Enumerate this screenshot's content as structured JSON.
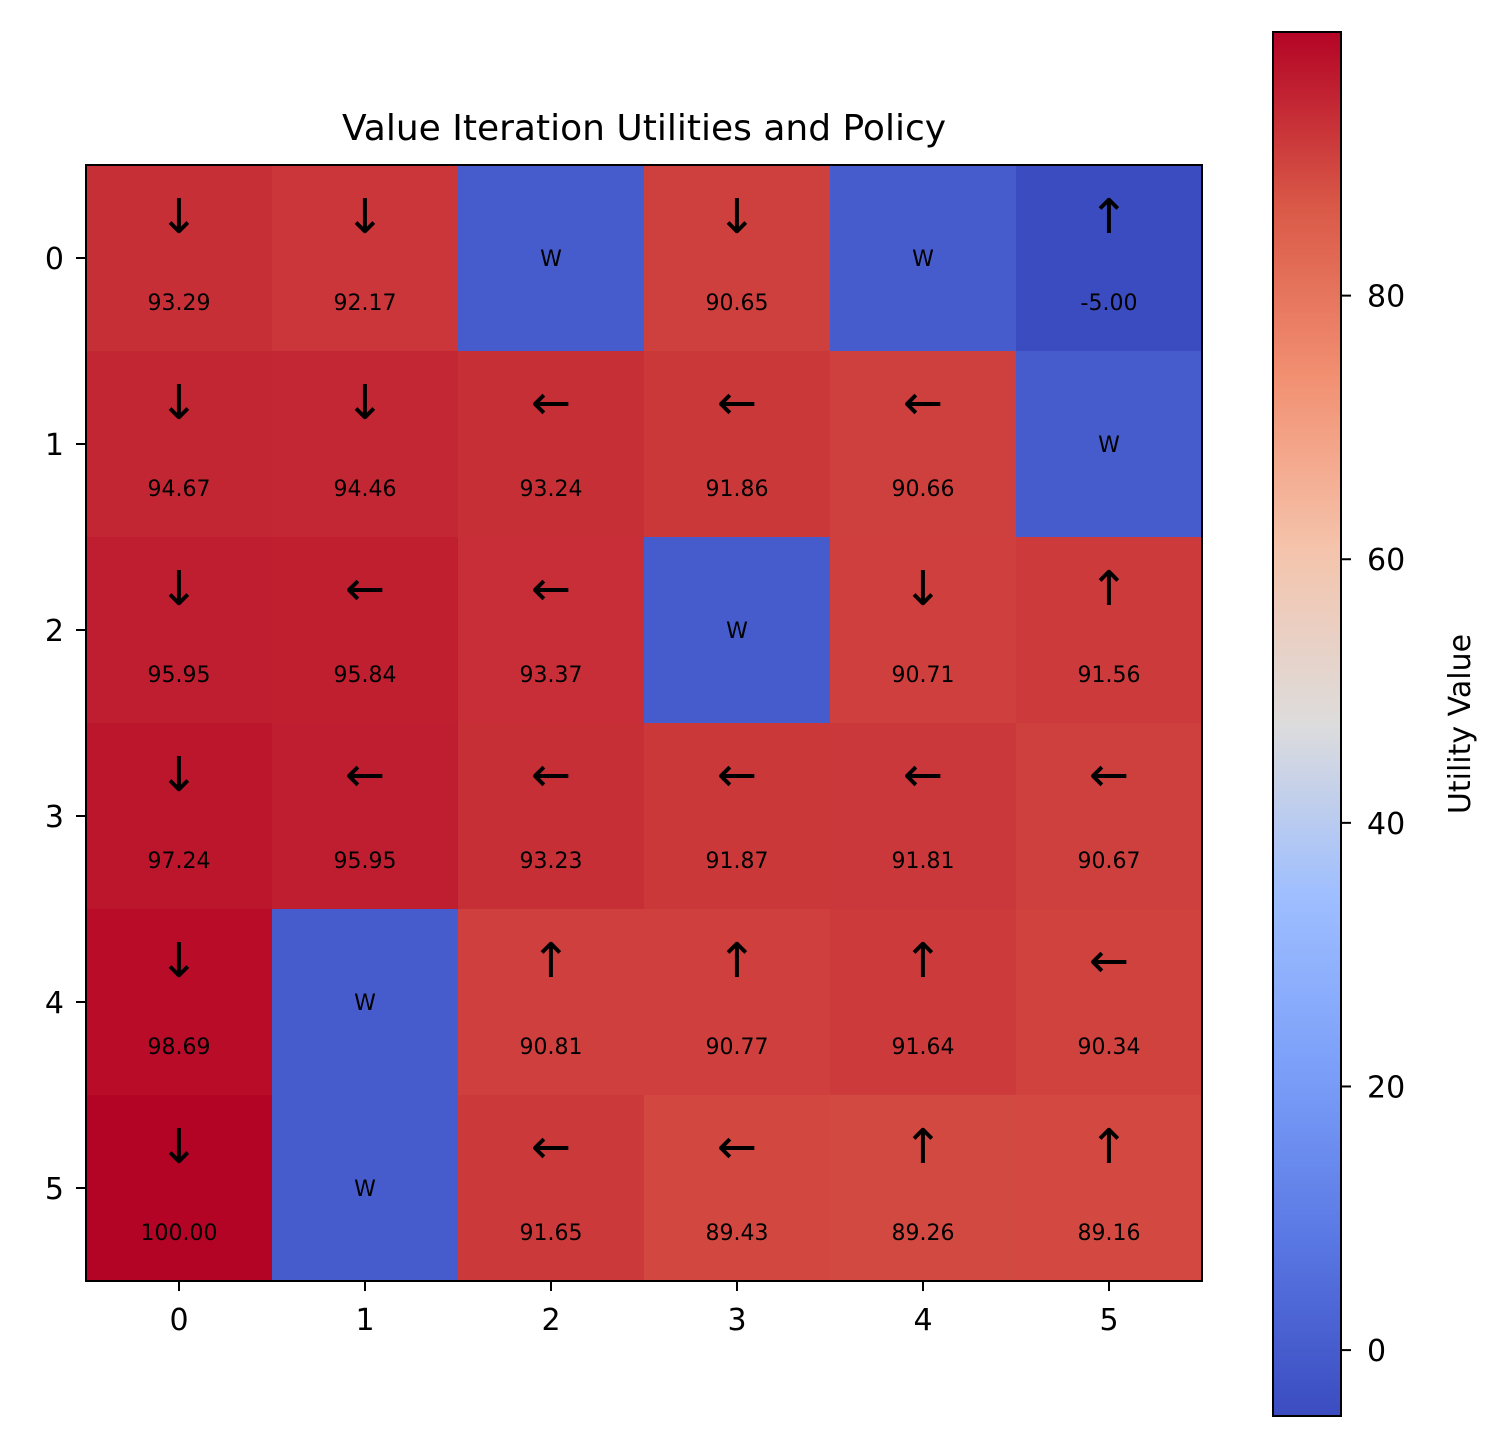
{
  "chart_data": {
    "type": "heatmap",
    "title": "Value Iteration Utilities and Policy",
    "xlabel": "",
    "ylabel": "",
    "x_ticks": [
      0,
      1,
      2,
      3,
      4,
      5
    ],
    "y_ticks": [
      0,
      1,
      2,
      3,
      4,
      5
    ],
    "colormap": "coolwarm",
    "wall_label": "W",
    "wall_utility": 0,
    "colorbar": {
      "label": "Utility Value",
      "vmin": -5,
      "vmax": 100,
      "ticks": [
        0,
        20,
        40,
        60,
        80
      ]
    },
    "arrow_glyphs": {
      "up": "↑",
      "down": "↓",
      "left": "←",
      "right": "→"
    },
    "grid": [
      [
        {
          "value": 93.29,
          "label": "93.29",
          "action": "down"
        },
        {
          "value": 92.17,
          "label": "92.17",
          "action": "down"
        },
        {
          "wall": true
        },
        {
          "value": 90.65,
          "label": "90.65",
          "action": "down"
        },
        {
          "wall": true
        },
        {
          "value": -5.0,
          "label": "-5.00",
          "action": "up"
        }
      ],
      [
        {
          "value": 94.67,
          "label": "94.67",
          "action": "down"
        },
        {
          "value": 94.46,
          "label": "94.46",
          "action": "down"
        },
        {
          "value": 93.24,
          "label": "93.24",
          "action": "left"
        },
        {
          "value": 91.86,
          "label": "91.86",
          "action": "left"
        },
        {
          "value": 90.66,
          "label": "90.66",
          "action": "left"
        },
        {
          "wall": true
        }
      ],
      [
        {
          "value": 95.95,
          "label": "95.95",
          "action": "down"
        },
        {
          "value": 95.84,
          "label": "95.84",
          "action": "left"
        },
        {
          "value": 93.37,
          "label": "93.37",
          "action": "left"
        },
        {
          "wall": true
        },
        {
          "value": 90.71,
          "label": "90.71",
          "action": "down"
        },
        {
          "value": 91.56,
          "label": "91.56",
          "action": "up"
        }
      ],
      [
        {
          "value": 97.24,
          "label": "97.24",
          "action": "down"
        },
        {
          "value": 95.95,
          "label": "95.95",
          "action": "left"
        },
        {
          "value": 93.23,
          "label": "93.23",
          "action": "left"
        },
        {
          "value": 91.87,
          "label": "91.87",
          "action": "left"
        },
        {
          "value": 91.81,
          "label": "91.81",
          "action": "left"
        },
        {
          "value": 90.67,
          "label": "90.67",
          "action": "left"
        }
      ],
      [
        {
          "value": 98.69,
          "label": "98.69",
          "action": "down"
        },
        {
          "wall": true
        },
        {
          "value": 90.81,
          "label": "90.81",
          "action": "up"
        },
        {
          "value": 90.77,
          "label": "90.77",
          "action": "up"
        },
        {
          "value": 91.64,
          "label": "91.64",
          "action": "up"
        },
        {
          "value": 90.34,
          "label": "90.34",
          "action": "left"
        }
      ],
      [
        {
          "value": 100.0,
          "label": "100.00",
          "action": "down"
        },
        {
          "wall": true
        },
        {
          "value": 91.65,
          "label": "91.65",
          "action": "left"
        },
        {
          "value": 89.43,
          "label": "89.43",
          "action": "left"
        },
        {
          "value": 89.26,
          "label": "89.26",
          "action": "up"
        },
        {
          "value": 89.16,
          "label": "89.16",
          "action": "up"
        }
      ]
    ]
  }
}
